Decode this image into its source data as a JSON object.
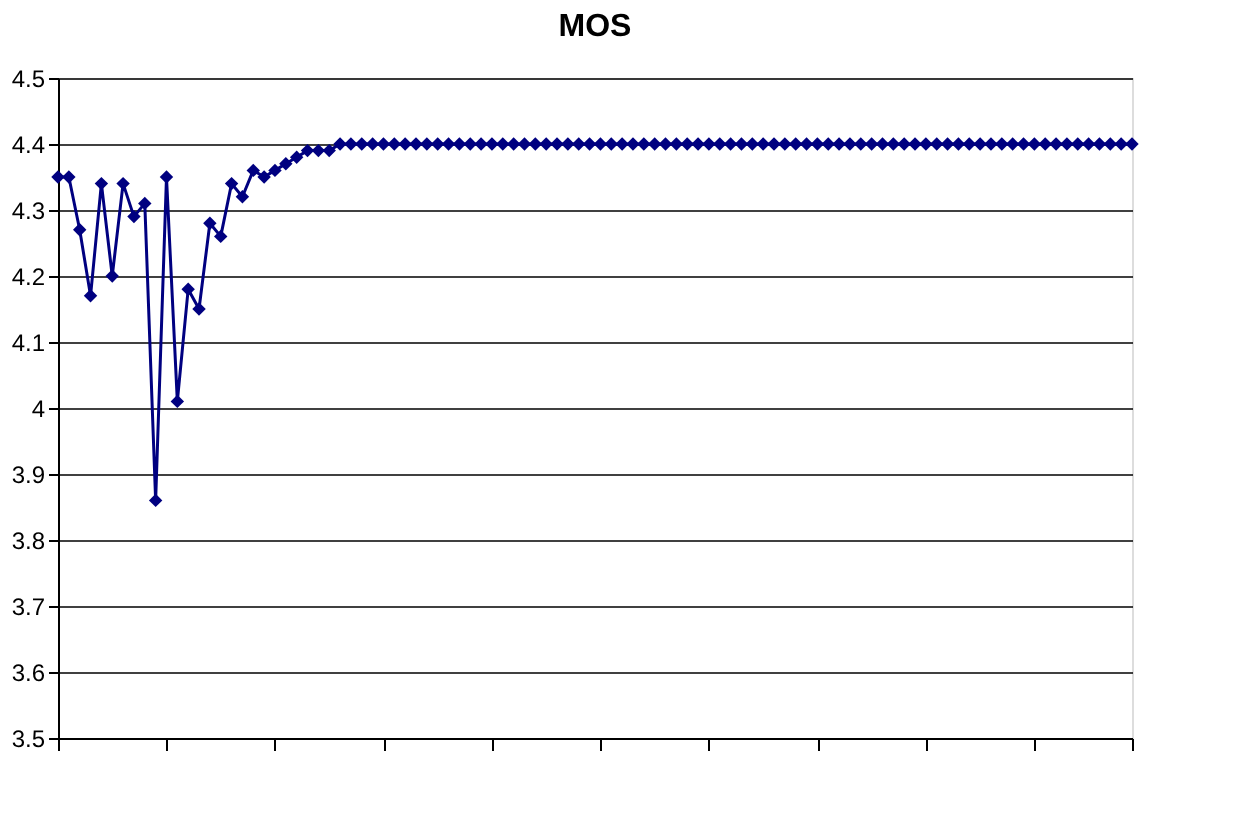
{
  "chart_data": {
    "type": "line",
    "title": "MOS",
    "categories": [
      null,
      null,
      null,
      null,
      null,
      null,
      null,
      null,
      null,
      null,
      null,
      null,
      null,
      null,
      null,
      null,
      null,
      null,
      null,
      null,
      null,
      null,
      null,
      null,
      null,
      null,
      null,
      null,
      null,
      null,
      null,
      null,
      null,
      null,
      null,
      null,
      null,
      null,
      null,
      null,
      null,
      null,
      null,
      null,
      null,
      null,
      null,
      null,
      null,
      null,
      null,
      null,
      null,
      null,
      null,
      null,
      null,
      null,
      null,
      null,
      null,
      null,
      null,
      null,
      null,
      null,
      null,
      null,
      null,
      null,
      null,
      null,
      null,
      null,
      null,
      null,
      null,
      null,
      null,
      null,
      null,
      null,
      null,
      null,
      null,
      null,
      null,
      null,
      null,
      null,
      null,
      null,
      null,
      null,
      null,
      null,
      null,
      null,
      null,
      null
    ],
    "series": [
      {
        "color": "#000080",
        "values": [
          4.35,
          4.35,
          4.27,
          4.17,
          4.34,
          4.2,
          4.34,
          4.29,
          4.31,
          3.86,
          4.35,
          4.01,
          4.18,
          4.15,
          4.28,
          4.26,
          4.34,
          4.32,
          4.36,
          4.35,
          4.36,
          4.37,
          4.38,
          4.39,
          4.39,
          4.39,
          4.4,
          4.4,
          4.4,
          4.4,
          4.4,
          4.4,
          4.4,
          4.4,
          4.4,
          4.4,
          4.4,
          4.4,
          4.4,
          4.4,
          4.4,
          4.4,
          4.4,
          4.4,
          4.4,
          4.4,
          4.4,
          4.4,
          4.4,
          4.4,
          4.4,
          4.4,
          4.4,
          4.4,
          4.4,
          4.4,
          4.4,
          4.4,
          4.4,
          4.4,
          4.4,
          4.4,
          4.4,
          4.4,
          4.4,
          4.4,
          4.4,
          4.4,
          4.4,
          4.4,
          4.4,
          4.4,
          4.4,
          4.4,
          4.4,
          4.4,
          4.4,
          4.4,
          4.4,
          4.4,
          4.4,
          4.4,
          4.4,
          4.4,
          4.4,
          4.4,
          4.4,
          4.4,
          4.4,
          4.4,
          4.4,
          4.4,
          4.4,
          4.4,
          4.4,
          4.4,
          4.4,
          4.4,
          4.4,
          4.4
        ]
      }
    ],
    "ylim": [
      3.5,
      4.5
    ],
    "yticks": [
      3.5,
      3.6,
      3.7,
      3.8,
      3.9,
      4,
      4.1,
      4.2,
      4.3,
      4.4,
      4.5
    ],
    "grid": "y",
    "legend": false,
    "marker": "diamond",
    "line_style": "solid",
    "tick_labels": "y"
  }
}
